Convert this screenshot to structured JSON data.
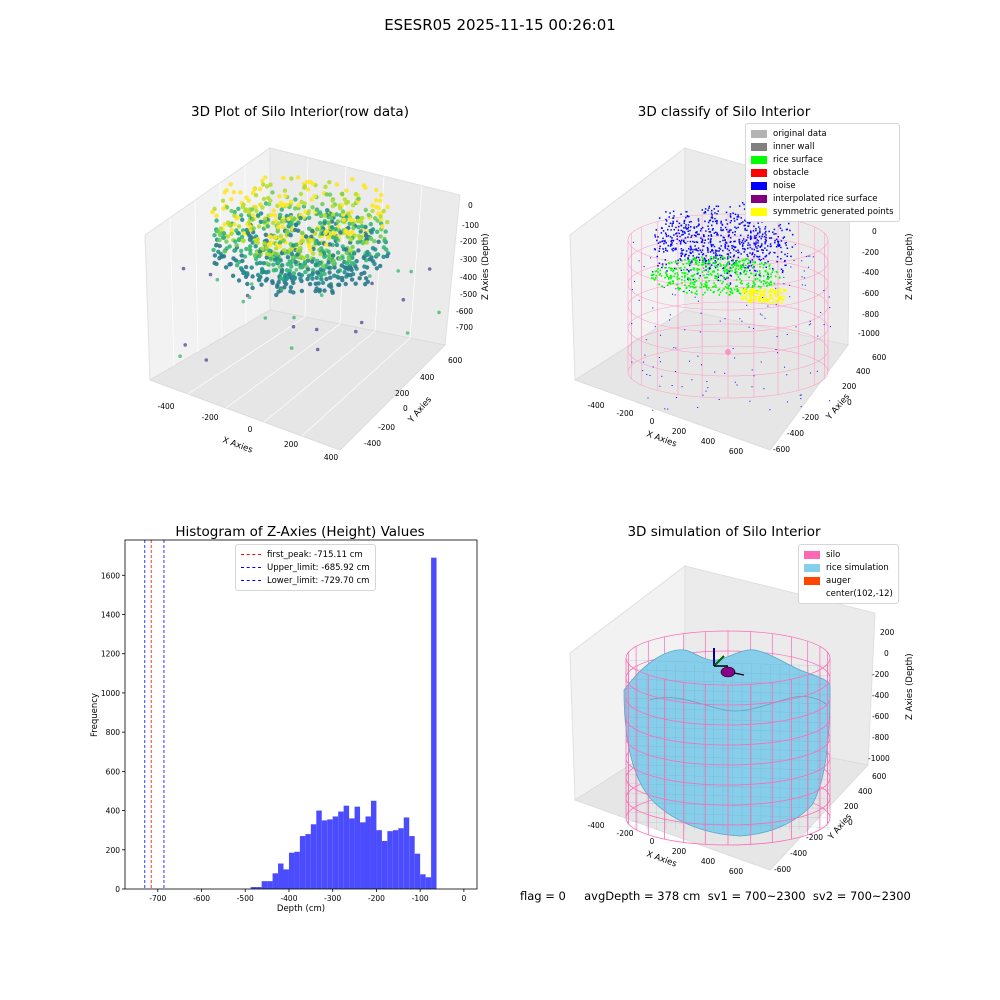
{
  "suptitle": "ESESR05 2025-11-15 00:26:01",
  "panels": {
    "raw": {
      "title": "3D Plot of Silo Interior(row data)",
      "xlabel": "X Axies",
      "ylabel": "Y Axies",
      "zlabel": "Z Axies (Depth)",
      "xticks": [
        "-400",
        "-200",
        "0",
        "200",
        "400"
      ],
      "yticks": [
        "600",
        "400",
        "200",
        "0",
        "-200",
        "-400"
      ],
      "zticks": [
        "0",
        "-100",
        "-200",
        "-300",
        "-400",
        "-500",
        "-600",
        "-700"
      ]
    },
    "classify": {
      "title": "3D classify of Silo Interior",
      "xlabel": "X Axies",
      "ylabel": "Y Axies",
      "zlabel": "Z Axies (Depth)",
      "xticks": [
        "-400",
        "-200",
        "0",
        "200",
        "400",
        "600"
      ],
      "yticks": [
        "600",
        "400",
        "200",
        "0",
        "-200",
        "-400",
        "-600"
      ],
      "zticks": [
        "200",
        "0",
        "-200",
        "-400",
        "-600",
        "-800",
        "-1000"
      ],
      "legend": [
        {
          "label": "original data",
          "color": "#b3b3b3"
        },
        {
          "label": "inner wall",
          "color": "#808080"
        },
        {
          "label": "rice surface",
          "color": "#00ff00"
        },
        {
          "label": "obstacle",
          "color": "#ff0000"
        },
        {
          "label": "noise",
          "color": "#0000ff"
        },
        {
          "label": "interpolated rice surface",
          "color": "#800080"
        },
        {
          "label": "symmetric generated points",
          "color": "#ffff00"
        }
      ]
    },
    "simulation": {
      "title": "3D simulation of Silo Interior",
      "xlabel": "X Axies",
      "ylabel": "Y Axies",
      "zlabel": "Z Axies (Depth)",
      "xticks": [
        "-400",
        "-200",
        "0",
        "200",
        "400",
        "600"
      ],
      "yticks": [
        "600",
        "400",
        "200",
        "0",
        "-200",
        "-400",
        "-600"
      ],
      "zticks": [
        "200",
        "0",
        "-200",
        "-400",
        "-600",
        "-800",
        "-1000"
      ],
      "legend": [
        {
          "label": "silo",
          "color": "#ff69b4"
        },
        {
          "label": "rice simulation",
          "color": "#87ceeb"
        },
        {
          "label": "auger",
          "color": "#ff4500"
        },
        {
          "label": "center(102,-12)",
          "color": ""
        }
      ]
    }
  },
  "footer": "flag = 0     avgDepth = 378 cm  sv1 = 700~2300  sv2 = 700~2300",
  "chart_data": {
    "type": "bar",
    "title": "Histogram of Z-Axies (Height) Values",
    "xlabel": "Depth (cm)",
    "ylabel": "Frequency",
    "xlim": [
      -775,
      30
    ],
    "ylim": [
      0,
      1780
    ],
    "xticks": [
      -700,
      -600,
      -500,
      -400,
      -300,
      -200,
      -100,
      0
    ],
    "yticks": [
      0,
      200,
      400,
      600,
      800,
      1000,
      1200,
      1400,
      1600
    ],
    "bar_color": "#4c4cff",
    "bin_width": 12.5,
    "bin_starts": [
      -487.5,
      -475,
      -462.5,
      -450,
      -437.5,
      -425,
      -412.5,
      -400,
      -387.5,
      -375,
      -362.5,
      -350,
      -337.5,
      -325,
      -312.5,
      -300,
      -287.5,
      -275,
      -262.5,
      -250,
      -237.5,
      -225,
      -212.5,
      -200,
      -187.5,
      -175,
      -162.5,
      -150,
      -137.5,
      -125,
      -112.5,
      -100,
      -87.5,
      -75,
      -62.5,
      -50,
      -37.5,
      -25,
      -12.5
    ],
    "values": [
      10,
      10,
      40,
      40,
      80,
      130,
      100,
      185,
      190,
      270,
      280,
      330,
      400,
      350,
      355,
      370,
      395,
      425,
      360,
      420,
      340,
      370,
      450,
      300,
      245,
      295,
      300,
      310,
      365,
      270,
      180,
      75,
      60,
      1690,
      0,
      0,
      0,
      0,
      0
    ],
    "lines": [
      {
        "label": "first_peak: -715.11 cm",
        "x": -715.11,
        "color": "#ff0000"
      },
      {
        "label": "Upper_limit: -685.92 cm",
        "x": -685.92,
        "color": "#0000ff"
      },
      {
        "label": "Lower_limit: -729.70 cm",
        "x": -729.7,
        "color": "#0000ff"
      }
    ],
    "legend_position": "upper center"
  }
}
